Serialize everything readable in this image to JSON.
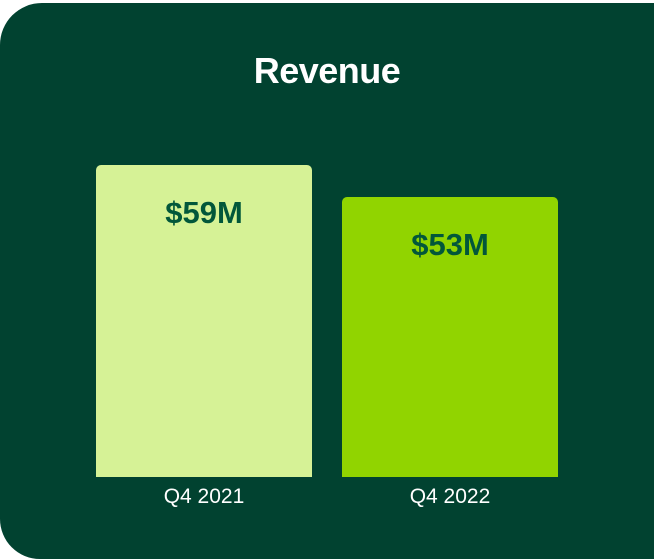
{
  "chart_data": {
    "type": "bar",
    "title": "Revenue",
    "categories": [
      "Q4 2021",
      "Q4 2022"
    ],
    "values": [
      59,
      53
    ],
    "value_labels": [
      "$59M",
      "$53M"
    ],
    "unit": "USD millions",
    "xlabel": "",
    "ylabel": "",
    "grid": false,
    "legend": "none",
    "colors": [
      "#d6f296",
      "#91d400"
    ]
  },
  "theme": {
    "background": "#014230",
    "title_color": "#ffffff",
    "value_label_color": "#02573a"
  }
}
